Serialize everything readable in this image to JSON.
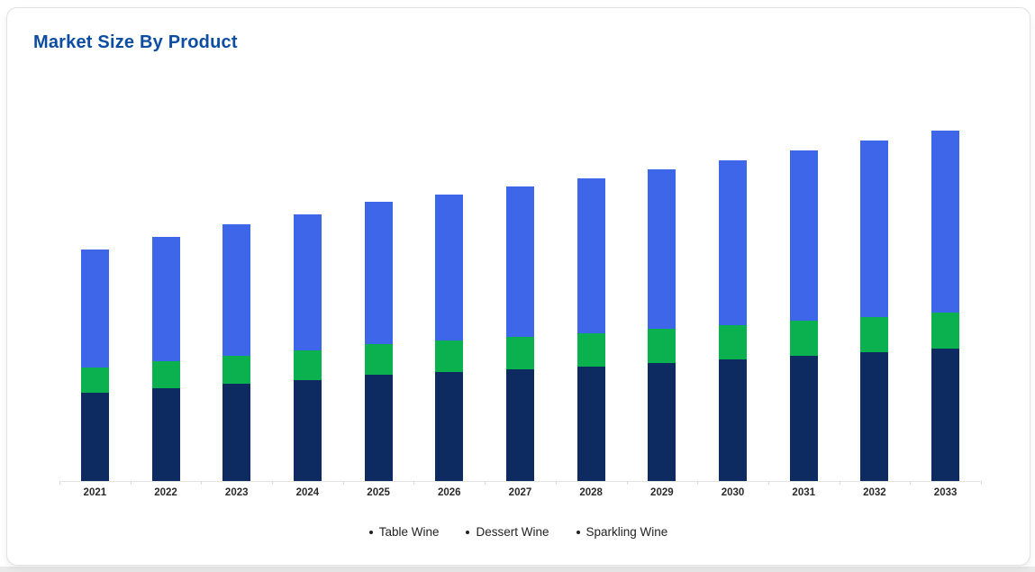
{
  "card": {
    "title": "Market Size By Product"
  },
  "colors": {
    "title_text": "#0c4da2",
    "table_wine": "#0d2b61",
    "dessert_wine": "#0cb14f",
    "sparkling_wine": "#3d66e8",
    "axis_line": "#e3e3e3",
    "x_label_text": "#2b2b2b",
    "legend_text": "#222222"
  },
  "chart_data": {
    "type": "bar",
    "stacked": true,
    "title": "Market Size By Product",
    "xlabel": "",
    "ylabel": "",
    "y_axis_visible": false,
    "gridlines": false,
    "value_units": "relative units (no y-axis or data labels shown; values estimated from bar pixel heights)",
    "ylim": [
      0,
      414
    ],
    "legend_position": "bottom",
    "categories": [
      "2021",
      "2022",
      "2023",
      "2024",
      "2025",
      "2026",
      "2027",
      "2028",
      "2029",
      "2030",
      "2031",
      "2032",
      "2033"
    ],
    "series": [
      {
        "name": "Table Wine",
        "color": "#0d2b61",
        "values": [
          98,
          103,
          108,
          112,
          118,
          121,
          124,
          127,
          131,
          135,
          139,
          143,
          147
        ]
      },
      {
        "name": "Dessert Wine",
        "color": "#0cb14f",
        "values": [
          28,
          30,
          31,
          33,
          34,
          35,
          36,
          37,
          38,
          38,
          39,
          39,
          40
        ]
      },
      {
        "name": "Sparkling Wine",
        "color": "#3d66e8",
        "values": [
          131,
          138,
          146,
          151,
          158,
          162,
          167,
          172,
          177,
          183,
          189,
          196,
          202
        ]
      }
    ],
    "totals": [
      257,
      271,
      285,
      296,
      310,
      318,
      327,
      336,
      346,
      356,
      367,
      378,
      389
    ]
  }
}
